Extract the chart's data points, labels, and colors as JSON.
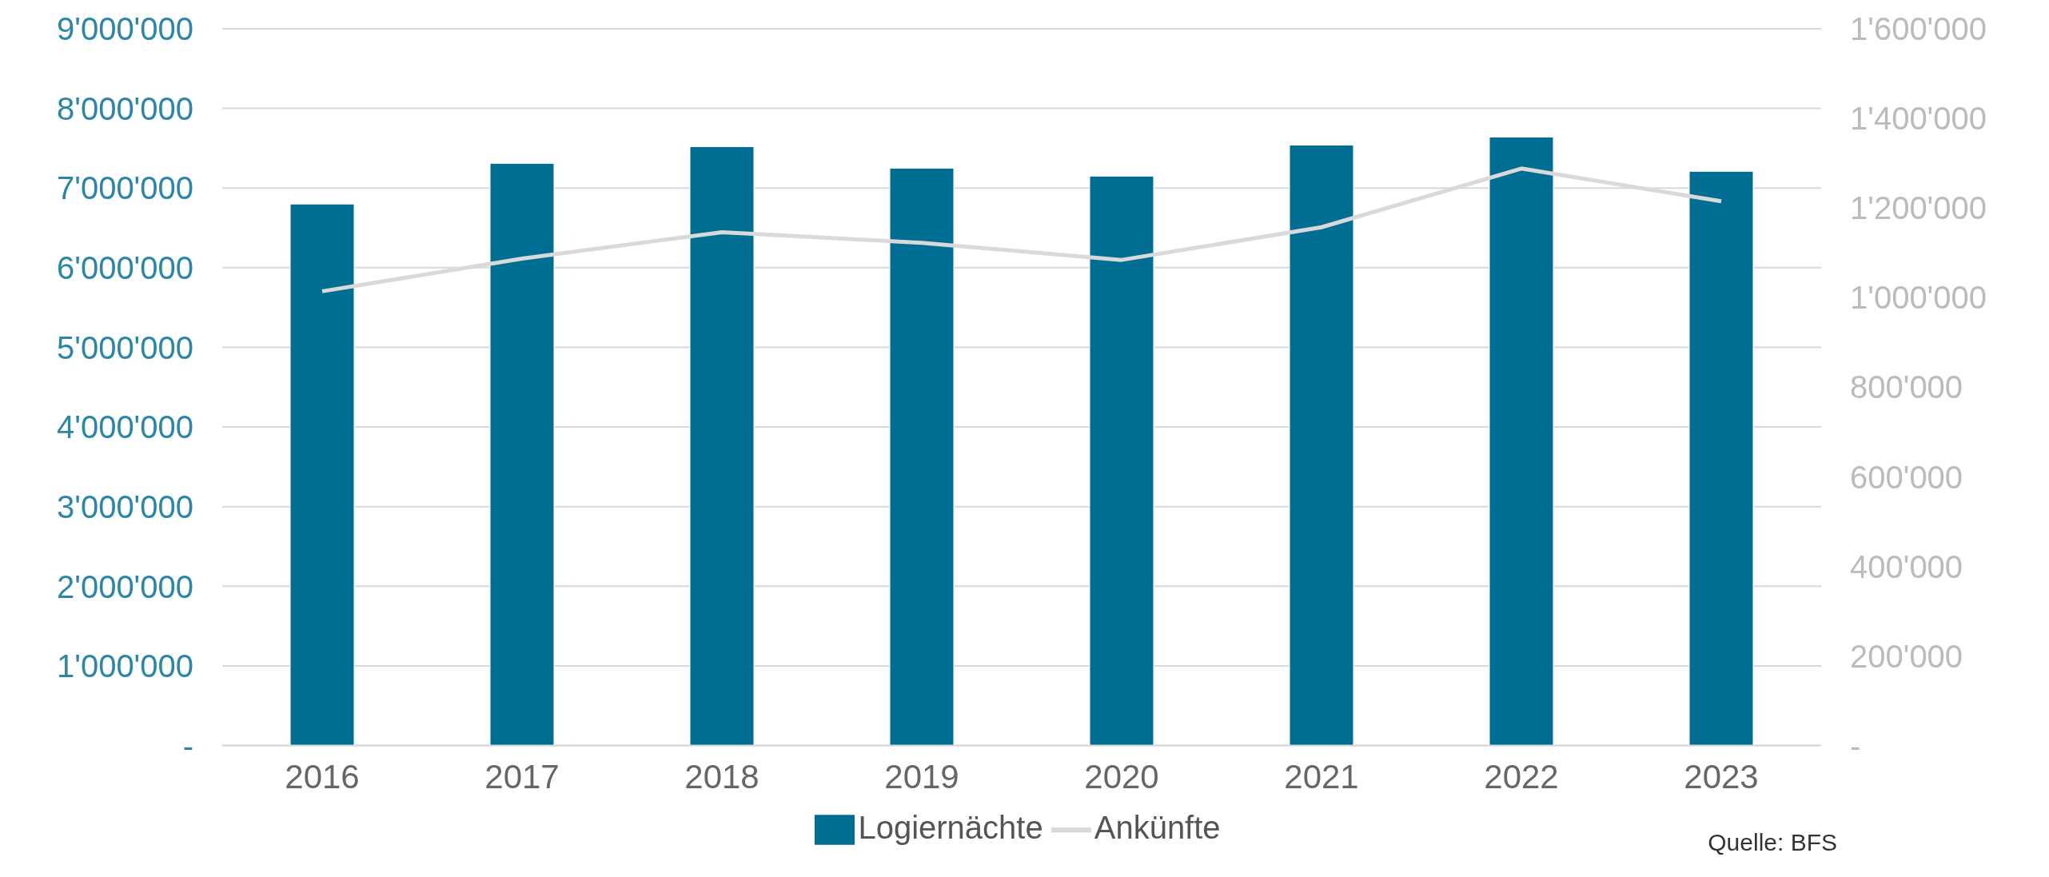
{
  "chart_data": {
    "type": "bar",
    "categories": [
      "2016",
      "2017",
      "2018",
      "2019",
      "2020",
      "2021",
      "2022",
      "2023"
    ],
    "series": [
      {
        "name": "Logiernächte",
        "color": "#006e93",
        "values": [
          6800000,
          7310000,
          7520000,
          7250000,
          7150000,
          7540000,
          7640000,
          7210000
        ]
      },
      {
        "name": "Ankünfte",
        "type": "line",
        "axis": "y2",
        "color": "#d9d9d9",
        "values": [
          1014000,
          1087000,
          1146000,
          1122000,
          1084000,
          1157000,
          1288000,
          1215000
        ]
      }
    ],
    "ylim": [
      0,
      9000000
    ],
    "yticks": [
      {
        "value": 0,
        "label": "-"
      },
      {
        "value": 1000000,
        "label": "1'000'000"
      },
      {
        "value": 2000000,
        "label": "2'000'000"
      },
      {
        "value": 3000000,
        "label": "3'000'000"
      },
      {
        "value": 4000000,
        "label": "4'000'000"
      },
      {
        "value": 5000000,
        "label": "5'000'000"
      },
      {
        "value": 6000000,
        "label": "6'000'000"
      },
      {
        "value": 7000000,
        "label": "7'000'000"
      },
      {
        "value": 8000000,
        "label": "8'000'000"
      },
      {
        "value": 9000000,
        "label": "9'000'000"
      }
    ],
    "y2lim": [
      0,
      1600000
    ],
    "y2ticks": [
      {
        "value": 0,
        "label": "-"
      },
      {
        "value": 200000,
        "label": "200'000"
      },
      {
        "value": 400000,
        "label": "400'000"
      },
      {
        "value": 600000,
        "label": "600'000"
      },
      {
        "value": 800000,
        "label": "800'000"
      },
      {
        "value": 1000000,
        "label": "1'000'000"
      },
      {
        "value": 1200000,
        "label": "1'200'000"
      },
      {
        "value": 1400000,
        "label": "1'400'000"
      },
      {
        "value": 1600000,
        "label": "1'600'000"
      }
    ],
    "grid": "y",
    "legend": "bottom",
    "marker": "none",
    "annotations": [
      "Quelle: BFS"
    ]
  }
}
